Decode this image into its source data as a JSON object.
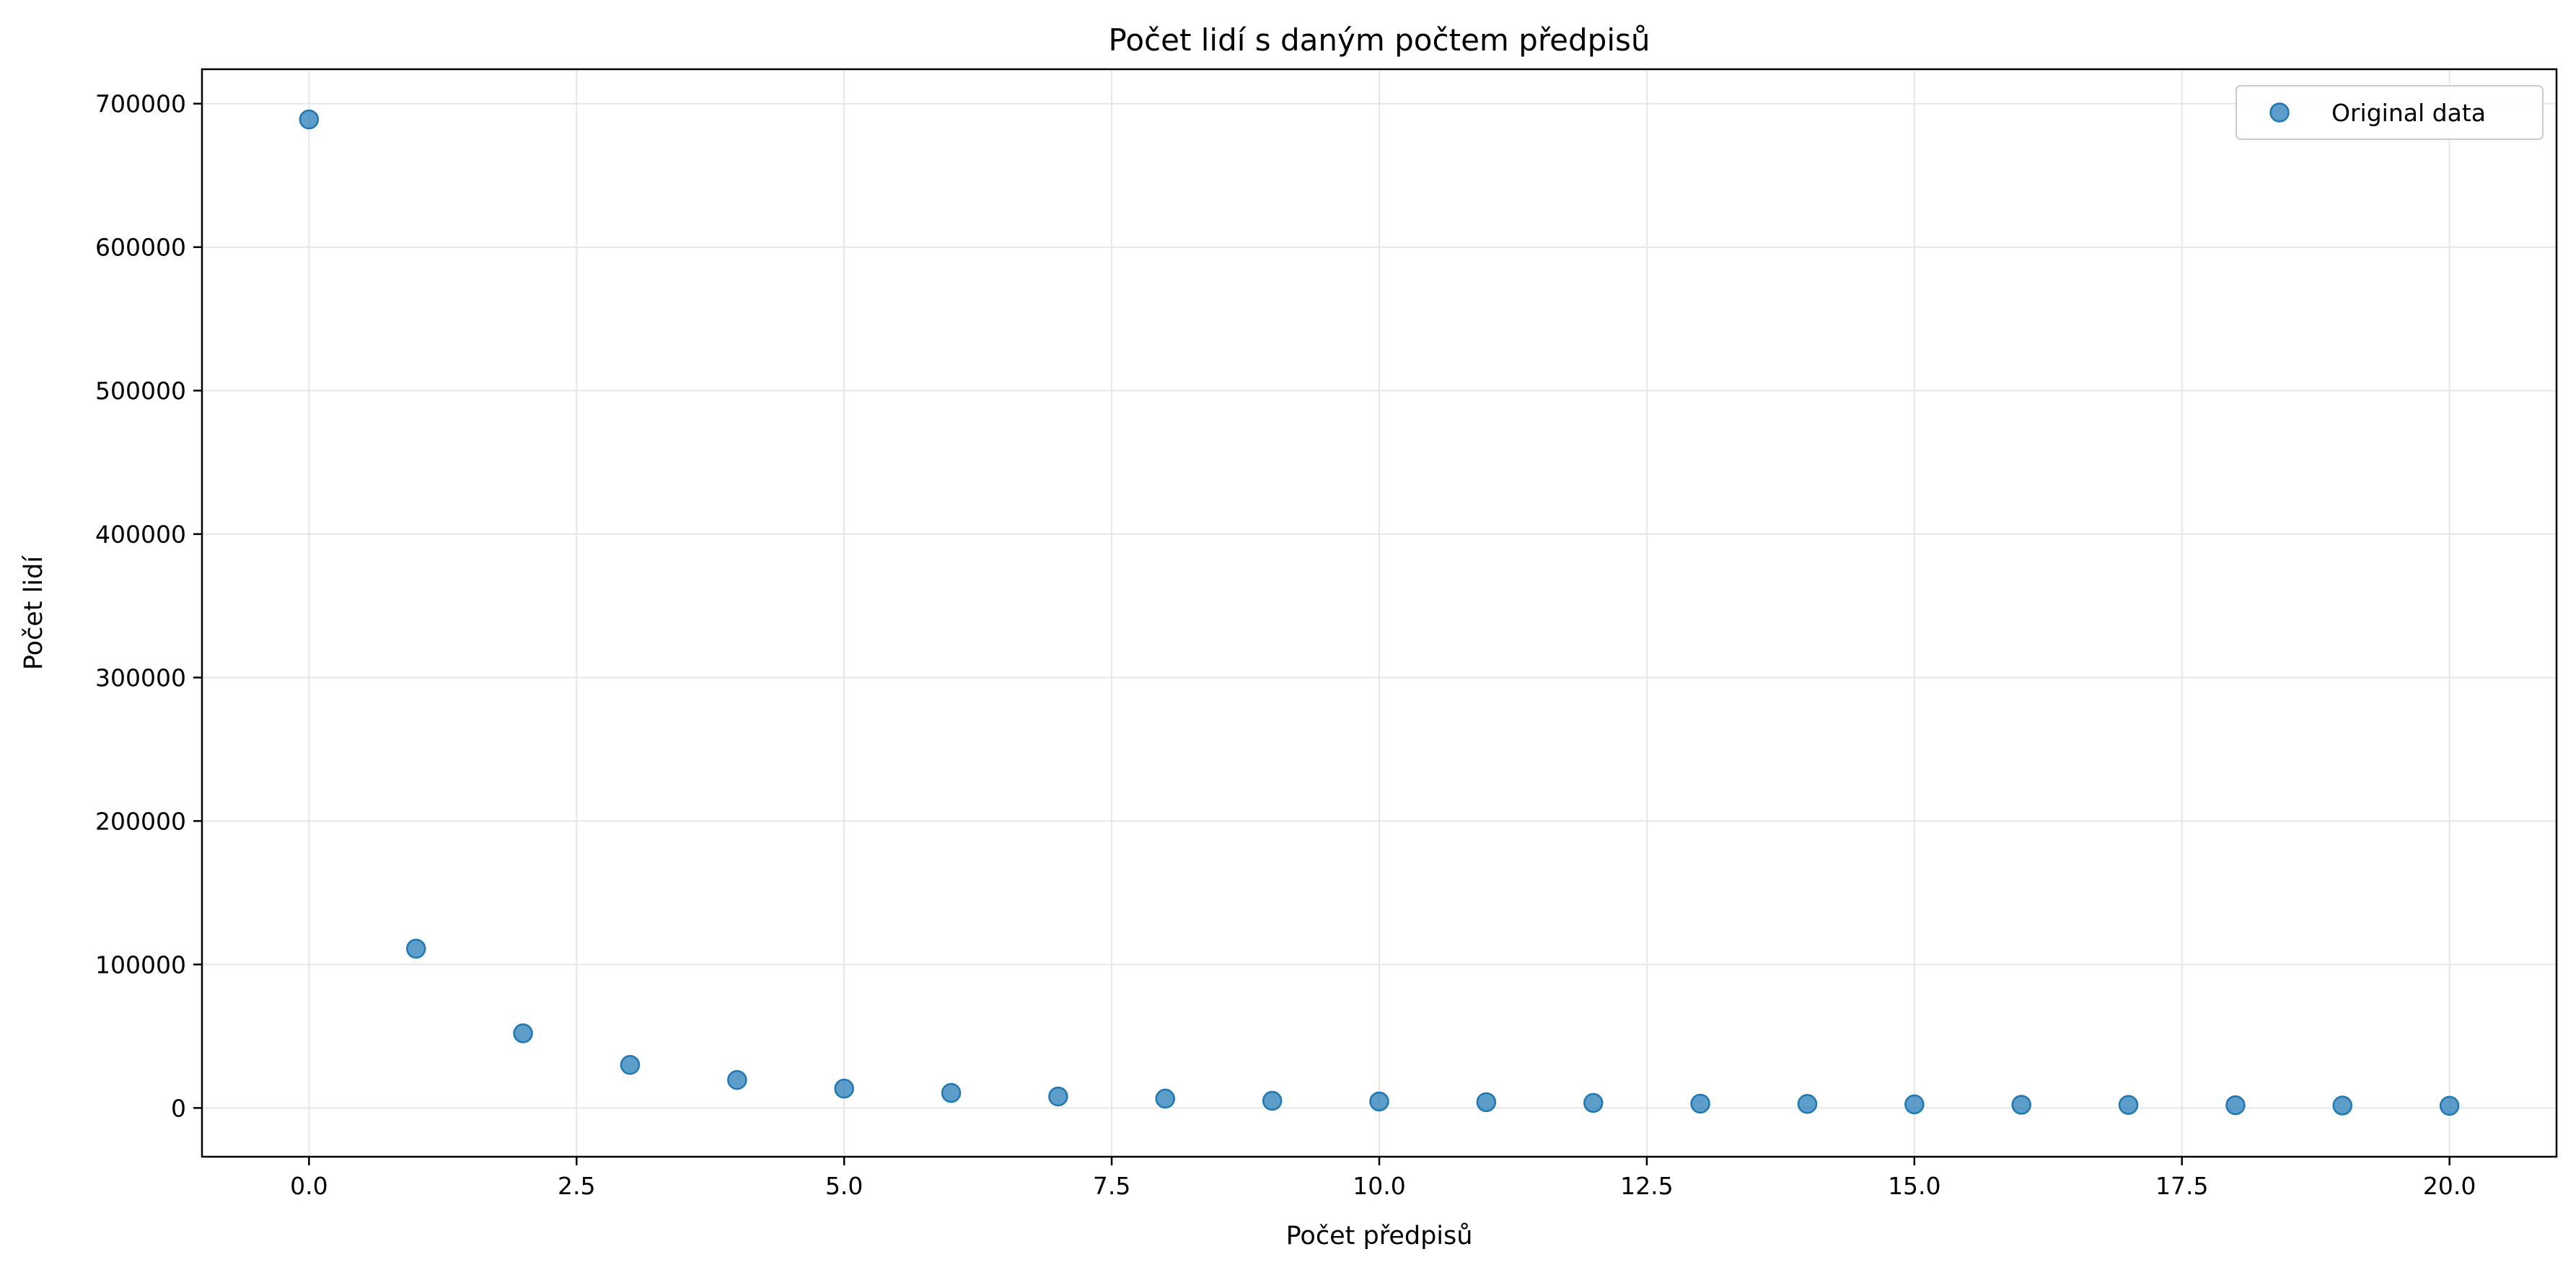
{
  "chart_data": {
    "type": "scatter",
    "title": "Počet lidí s daným počtem předpisů",
    "xlabel": "Počet předpisů",
    "ylabel": "Počet lidí",
    "xlim": [
      -1,
      21
    ],
    "ylim": [
      -34000,
      724000
    ],
    "xticks": [
      0.0,
      2.5,
      5.0,
      7.5,
      10.0,
      12.5,
      15.0,
      17.5,
      20.0
    ],
    "xtick_labels": [
      "0.0",
      "2.5",
      "5.0",
      "7.5",
      "10.0",
      "12.5",
      "15.0",
      "17.5",
      "20.0"
    ],
    "yticks": [
      0,
      100000,
      200000,
      300000,
      400000,
      500000,
      600000,
      700000
    ],
    "ytick_labels": [
      "0",
      "100000",
      "200000",
      "300000",
      "400000",
      "500000",
      "600000",
      "700000"
    ],
    "grid": true,
    "legend_position": "top-right",
    "colors": {
      "marker": "#1f77b4",
      "grid": "#e6e6e6"
    },
    "series": [
      {
        "name": "Original data",
        "x": [
          0,
          1,
          2,
          3,
          4,
          5,
          6,
          7,
          8,
          9,
          10,
          11,
          12,
          13,
          14,
          15,
          16,
          17,
          18,
          19,
          20
        ],
        "y": [
          689000,
          111000,
          52000,
          30000,
          19500,
          13500,
          10500,
          8000,
          6500,
          5000,
          4500,
          4000,
          3500,
          3000,
          2800,
          2500,
          2200,
          2100,
          1900,
          1700,
          1500
        ]
      }
    ]
  }
}
